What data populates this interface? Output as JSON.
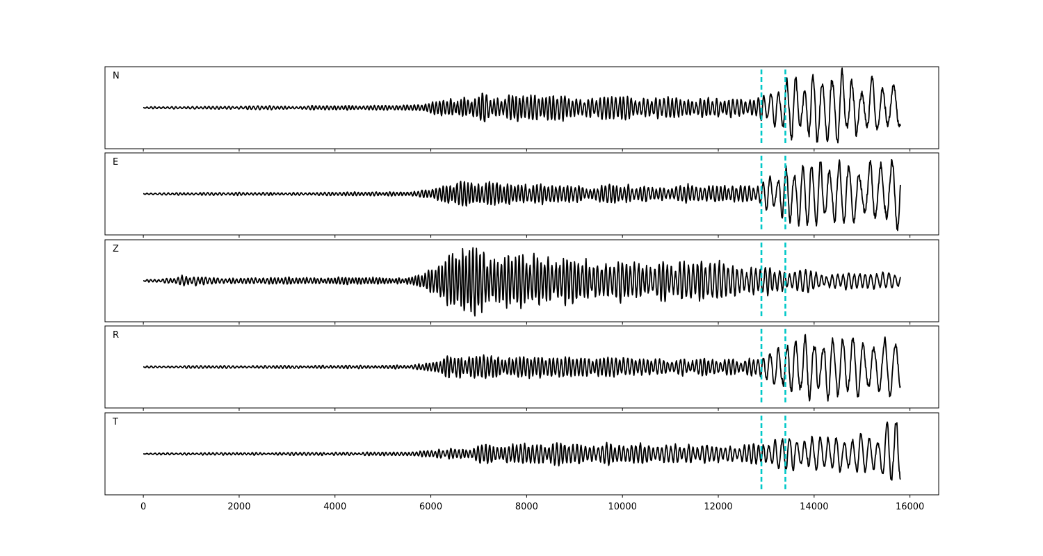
{
  "chart_data": {
    "type": "line",
    "layout": "stacked-panels",
    "xlim": [
      -800,
      16600
    ],
    "shared_x_ticks": [
      0,
      2000,
      4000,
      6000,
      8000,
      10000,
      12000,
      14000,
      16000
    ],
    "x_tick_labels": [
      "0",
      "2000",
      "4000",
      "6000",
      "8000",
      "10000",
      "12000",
      "14000",
      "16000"
    ],
    "y_axis_visible": false,
    "grid": false,
    "legend": "none",
    "line_color": "#000000",
    "marker_color": "#00c8c8",
    "vertical_markers": [
      12900,
      13400
    ],
    "sample_start": 0,
    "sample_end": 15800,
    "panels": [
      {
        "label": "N",
        "ylim": [
          -1.15,
          1.15
        ],
        "envelope": [
          [
            0,
            0.03
          ],
          [
            5600,
            0.07
          ],
          [
            6000,
            0.15
          ],
          [
            6400,
            0.28
          ],
          [
            7000,
            0.38
          ],
          [
            8500,
            0.33
          ],
          [
            11000,
            0.28
          ],
          [
            12800,
            0.25
          ],
          [
            13100,
            0.55
          ],
          [
            13500,
            0.95
          ],
          [
            14700,
            0.95
          ],
          [
            15800,
            0.8
          ]
        ],
        "period": [
          [
            0,
            90
          ],
          [
            6000,
            75
          ],
          [
            12800,
            90
          ],
          [
            13100,
            170
          ],
          [
            15800,
            240
          ]
        ],
        "seed": 11
      },
      {
        "label": "E",
        "ylim": [
          -1.15,
          1.15
        ],
        "envelope": [
          [
            0,
            0.03
          ],
          [
            5600,
            0.06
          ],
          [
            6000,
            0.14
          ],
          [
            6400,
            0.3
          ],
          [
            7000,
            0.3
          ],
          [
            9000,
            0.26
          ],
          [
            12800,
            0.22
          ],
          [
            13100,
            0.5
          ],
          [
            13500,
            0.9
          ],
          [
            14700,
            0.8
          ],
          [
            15600,
            1.0
          ],
          [
            15800,
            1.05
          ]
        ],
        "period": [
          [
            0,
            90
          ],
          [
            6000,
            75
          ],
          [
            12800,
            90
          ],
          [
            13100,
            170
          ],
          [
            15800,
            240
          ]
        ],
        "seed": 23
      },
      {
        "label": "Z",
        "ylim": [
          -1.1,
          1.1
        ],
        "envelope": [
          [
            0,
            0.05
          ],
          [
            600,
            0.06
          ],
          [
            900,
            0.16
          ],
          [
            1400,
            0.08
          ],
          [
            5600,
            0.1
          ],
          [
            6000,
            0.35
          ],
          [
            6500,
            0.85
          ],
          [
            7000,
            0.9
          ],
          [
            7500,
            0.75
          ],
          [
            9000,
            0.6
          ],
          [
            12000,
            0.5
          ],
          [
            13000,
            0.35
          ],
          [
            14000,
            0.25
          ],
          [
            15800,
            0.2
          ]
        ],
        "period": [
          [
            0,
            85
          ],
          [
            6000,
            70
          ],
          [
            12000,
            95
          ],
          [
            15800,
            130
          ]
        ],
        "seed": 37
      },
      {
        "label": "R",
        "ylim": [
          -1.15,
          1.15
        ],
        "envelope": [
          [
            0,
            0.03
          ],
          [
            5600,
            0.05
          ],
          [
            6000,
            0.14
          ],
          [
            6400,
            0.3
          ],
          [
            7000,
            0.32
          ],
          [
            9000,
            0.27
          ],
          [
            12800,
            0.22
          ],
          [
            13100,
            0.5
          ],
          [
            13500,
            0.95
          ],
          [
            14700,
            0.8
          ],
          [
            15800,
            0.75
          ]
        ],
        "period": [
          [
            0,
            90
          ],
          [
            6000,
            75
          ],
          [
            12800,
            90
          ],
          [
            13100,
            170
          ],
          [
            15800,
            240
          ]
        ],
        "seed": 41
      },
      {
        "label": "T",
        "ylim": [
          -1.15,
          1.15
        ],
        "envelope": [
          [
            0,
            0.03
          ],
          [
            5600,
            0.05
          ],
          [
            6000,
            0.1
          ],
          [
            6800,
            0.2
          ],
          [
            7200,
            0.28
          ],
          [
            9500,
            0.3
          ],
          [
            12800,
            0.28
          ],
          [
            13300,
            0.45
          ],
          [
            14500,
            0.5
          ],
          [
            15400,
            0.6
          ],
          [
            15600,
            1.05
          ],
          [
            15800,
            1.0
          ]
        ],
        "period": [
          [
            0,
            90
          ],
          [
            6000,
            80
          ],
          [
            12800,
            100
          ],
          [
            13300,
            150
          ],
          [
            15800,
            200
          ]
        ],
        "seed": 53
      }
    ]
  }
}
